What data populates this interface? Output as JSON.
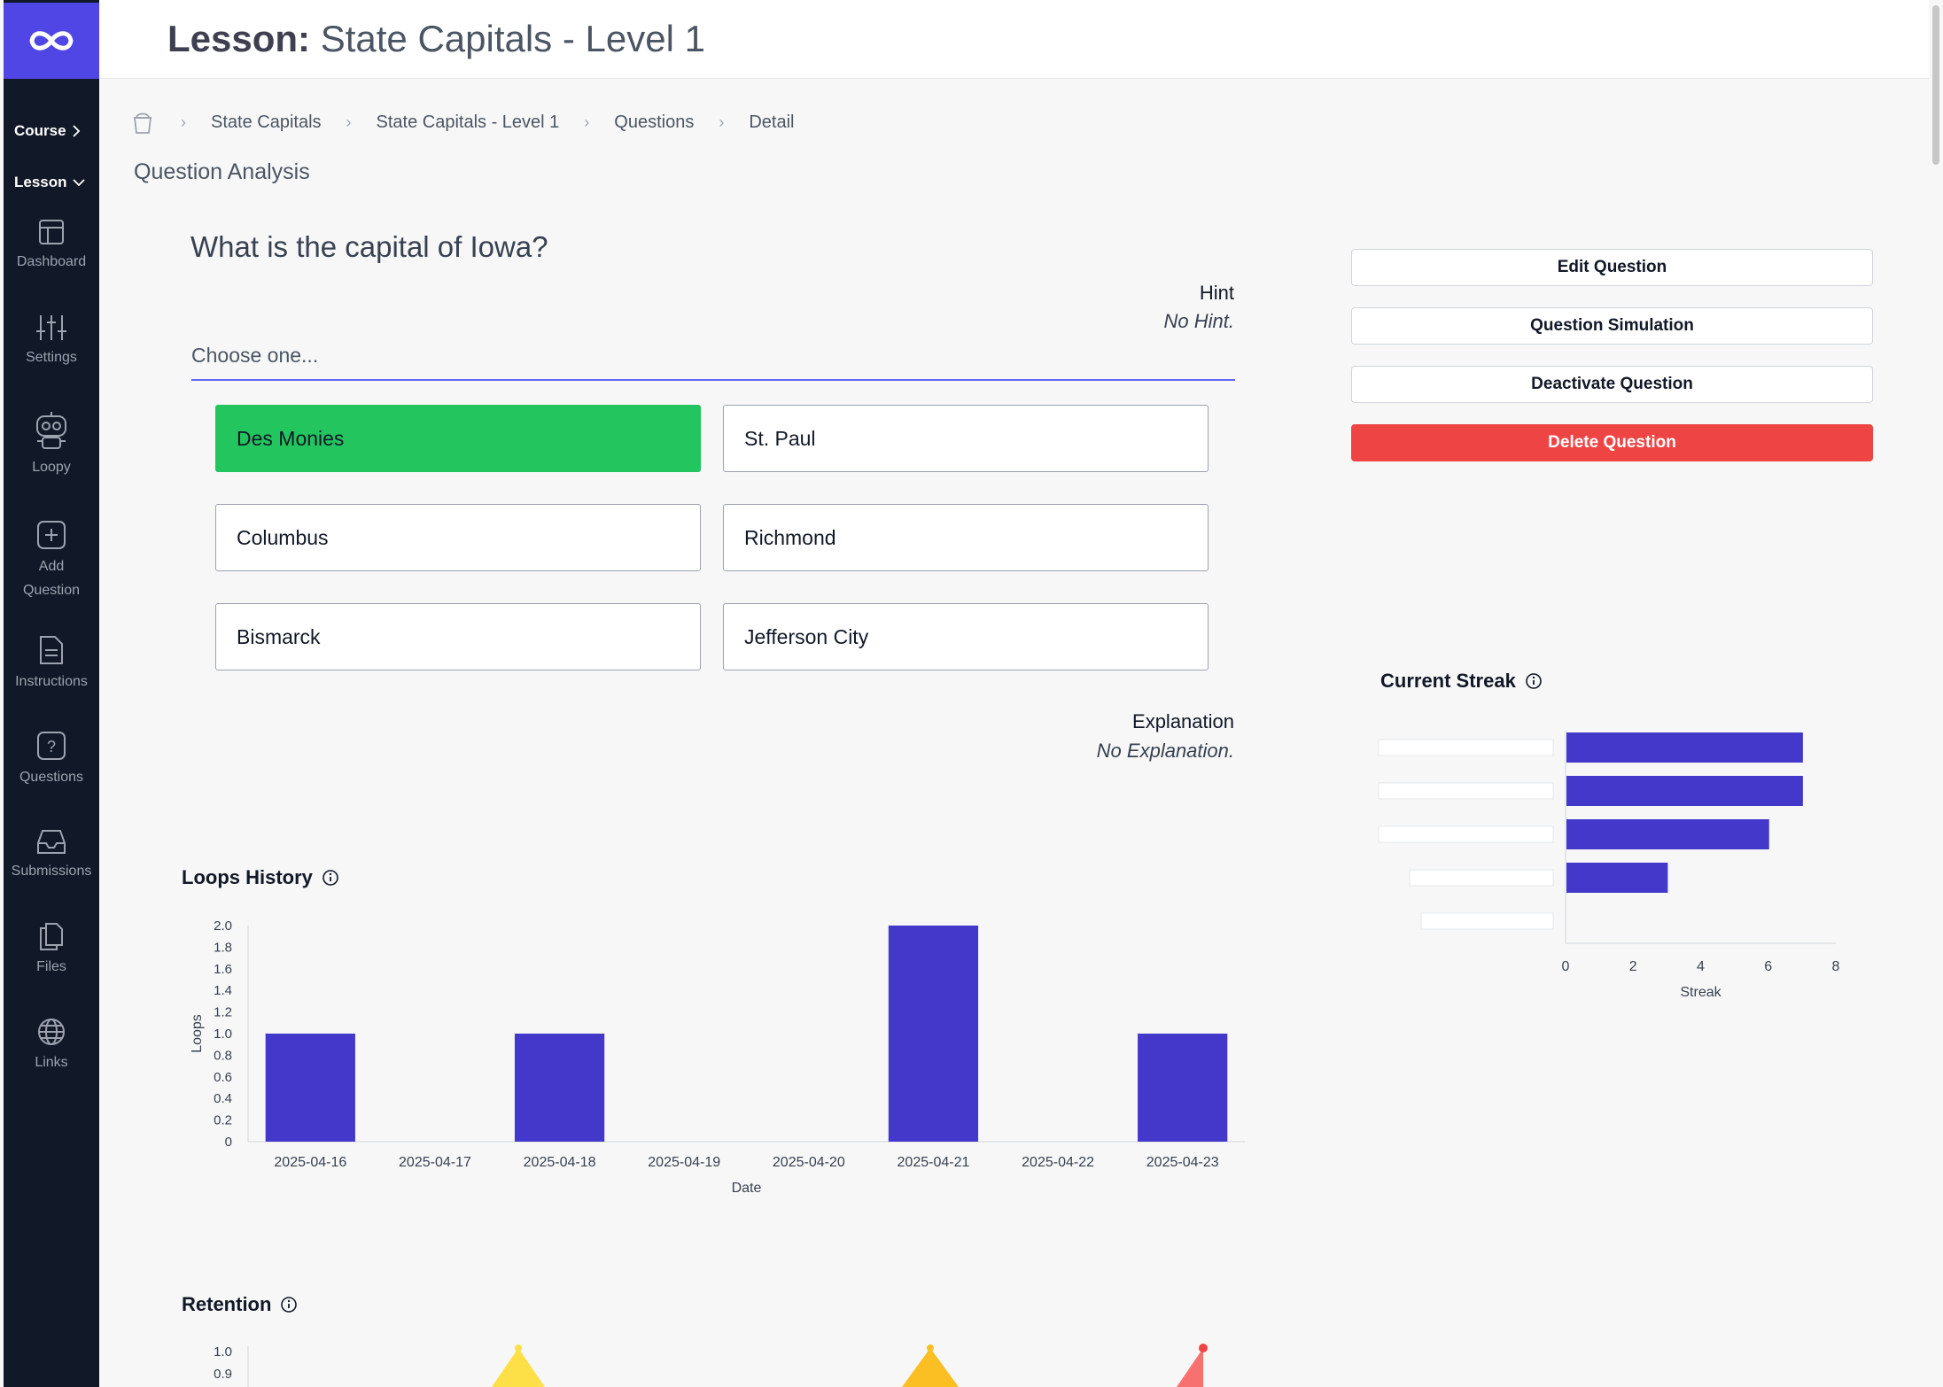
{
  "topbar": {
    "title_prefix": "Lesson:",
    "title": "State Capitals - Level 1"
  },
  "sidebar": {
    "course_toggle": "Course",
    "lesson_toggle": "Lesson",
    "items": [
      {
        "label": "Dashboard",
        "icon": "layout-icon"
      },
      {
        "label": "Settings",
        "icon": "sliders-icon"
      },
      {
        "label": "Loopy",
        "icon": "robot-icon"
      },
      {
        "label": "Add\nQuestion",
        "label_line1": "Add",
        "label_line2": "Question",
        "icon": "plus-square-icon"
      },
      {
        "label": "Instructions",
        "icon": "document-icon"
      },
      {
        "label": "Questions",
        "icon": "question-square-icon"
      },
      {
        "label": "Submissions",
        "icon": "inbox-icon"
      },
      {
        "label": "Files",
        "icon": "files-icon"
      },
      {
        "label": "Links",
        "icon": "globe-icon"
      }
    ]
  },
  "breadcrumb": {
    "home_icon": "home-icon",
    "items": [
      "State Capitals",
      "State Capitals - Level 1",
      "Questions",
      "Detail"
    ]
  },
  "page": {
    "section_title": "Question Analysis",
    "question": "What is the capital of Iowa?",
    "hint_label": "Hint",
    "hint_text": "No Hint.",
    "choose_placeholder": "Choose one...",
    "choices": [
      "Des Monies",
      "St. Paul",
      "Columbus",
      "Richmond",
      "Bismarck",
      "Jefferson City"
    ],
    "correct_choice": "Des Monies",
    "explanation_label": "Explanation",
    "explanation_text": "No Explanation."
  },
  "actions": {
    "edit": "Edit Question",
    "simulate": "Question Simulation",
    "deactivate": "Deactivate Question",
    "delete": "Delete Question"
  },
  "colors": {
    "brand": "#4f46e5",
    "correct": "#22c55e",
    "danger": "#ef4444",
    "bar": "#4338ca"
  },
  "chart_data": [
    {
      "type": "bar",
      "title": "Loops History",
      "xlabel": "Date",
      "ylabel": "Loops",
      "ylim": [
        0,
        2.0
      ],
      "yticks": [
        "0",
        "0.2",
        "0.4",
        "0.6",
        "0.8",
        "1.0",
        "1.2",
        "1.4",
        "1.6",
        "1.8",
        "2.0"
      ],
      "categories": [
        "2025-04-16",
        "2025-04-17",
        "2025-04-18",
        "2025-04-19",
        "2025-04-20",
        "2025-04-21",
        "2025-04-22",
        "2025-04-23"
      ],
      "values": [
        1,
        0,
        1,
        0,
        0,
        2,
        0,
        1
      ]
    },
    {
      "type": "bar",
      "orientation": "horizontal",
      "title": "Current Streak",
      "xlabel": "Streak",
      "xlim": [
        0,
        8
      ],
      "xticks": [
        "0",
        "2",
        "4",
        "6",
        "8"
      ],
      "values": [
        7,
        7,
        6,
        3,
        0
      ]
    },
    {
      "type": "area",
      "title": "Retention",
      "ylim": [
        0,
        1.0
      ],
      "yticks": [
        "1.0",
        "0.9"
      ],
      "series_colors": [
        "#fde047",
        "#fbbf24",
        "#f87171"
      ]
    }
  ]
}
